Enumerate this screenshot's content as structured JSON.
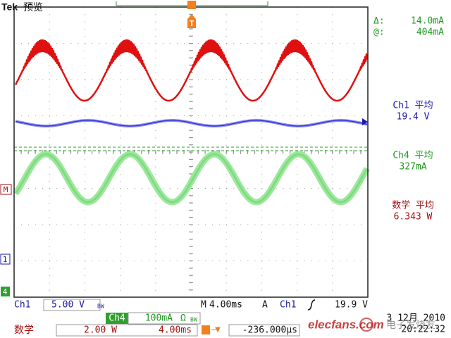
{
  "header": {
    "brand": "Tek",
    "mode": "预览"
  },
  "markers": {
    "trigger": "T",
    "math": "M",
    "ch1": "1",
    "ch4": "4"
  },
  "cursor": {
    "delta_label": "Δ:",
    "delta": "14.0mA",
    "at_label": "@:",
    "at": "404mA"
  },
  "measurements": [
    {
      "label": "Ch1 平均",
      "value": "19.4 V"
    },
    {
      "label": "Ch4 平均",
      "value": "327mA"
    },
    {
      "label": "数学 平均",
      "value": "6.343 W"
    }
  ],
  "status_bar": {
    "ch1": "Ch1",
    "ch1_scale": "5.00 V",
    "ch1_bw": "BW",
    "ch4": "Ch4",
    "ch4_scale": "100mA",
    "ch4_ohm": "Ω",
    "ch4_bw": "BW",
    "timebase_label": "M",
    "timebase": "4.00ms",
    "trigger_label": "A",
    "trigger_source": "Ch1",
    "trigger_level": "19.9 V"
  },
  "math_bar": {
    "label": "数学",
    "scale": "2.00 W",
    "timebase": "4.00ms",
    "position": "-236.000µs"
  },
  "date": "3 12月 2010",
  "time": "20:22:32",
  "watermark": {
    "site": "elecfans.com",
    "name": "电子发烧友"
  }
}
